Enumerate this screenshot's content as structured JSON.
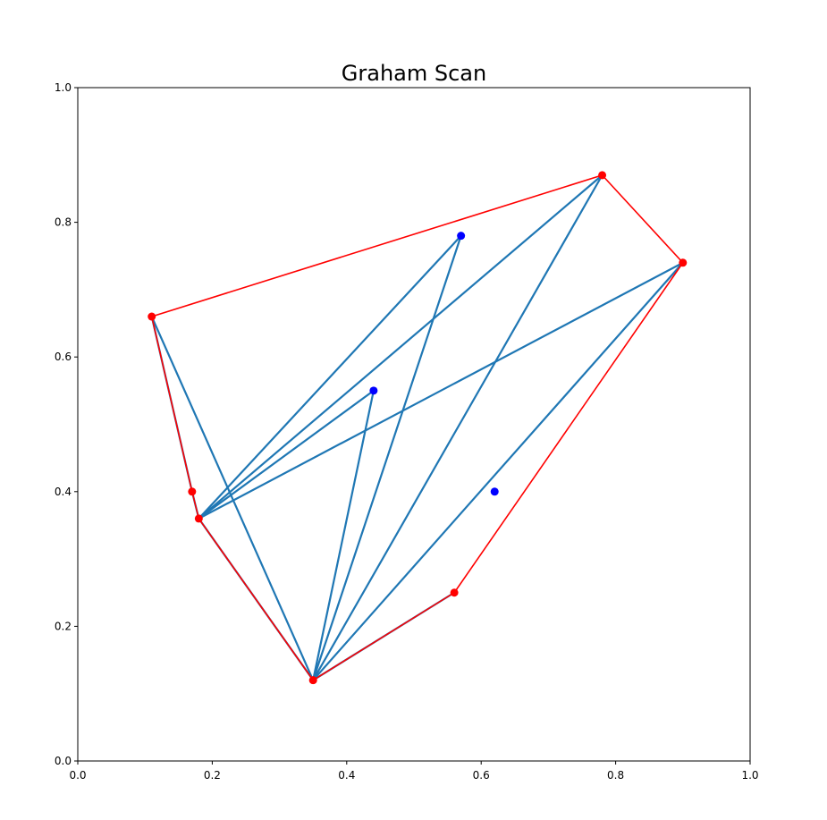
{
  "chart_data": {
    "type": "scatter",
    "title": "Graham Scan",
    "xlabel": "",
    "ylabel": "",
    "xlim": [
      0,
      1
    ],
    "ylim": [
      0,
      1
    ],
    "xticks": [
      "0.0",
      "0.2",
      "0.4",
      "0.6",
      "0.8",
      "1.0"
    ],
    "yticks": [
      "0.0",
      "0.2",
      "0.4",
      "0.6",
      "0.8",
      "1.0"
    ],
    "grid": false,
    "colors": {
      "hull": "#ff0000",
      "interior": "#0000ff",
      "scan": "#1f77b4"
    },
    "hull_points": [
      {
        "x": 0.35,
        "y": 0.12
      },
      {
        "x": 0.56,
        "y": 0.25
      },
      {
        "x": 0.9,
        "y": 0.74
      },
      {
        "x": 0.78,
        "y": 0.87
      },
      {
        "x": 0.11,
        "y": 0.66
      },
      {
        "x": 0.17,
        "y": 0.4
      },
      {
        "x": 0.18,
        "y": 0.36
      }
    ],
    "interior_points": [
      {
        "x": 0.57,
        "y": 0.78
      },
      {
        "x": 0.44,
        "y": 0.55
      },
      {
        "x": 0.62,
        "y": 0.4
      }
    ],
    "scan_segments": [
      [
        [
          0.35,
          0.12
        ],
        [
          0.56,
          0.25
        ]
      ],
      [
        [
          0.35,
          0.12
        ],
        [
          0.9,
          0.74
        ]
      ],
      [
        [
          0.35,
          0.12
        ],
        [
          0.78,
          0.87
        ]
      ],
      [
        [
          0.35,
          0.12
        ],
        [
          0.57,
          0.78
        ]
      ],
      [
        [
          0.35,
          0.12
        ],
        [
          0.44,
          0.55
        ]
      ],
      [
        [
          0.35,
          0.12
        ],
        [
          0.11,
          0.66
        ]
      ],
      [
        [
          0.35,
          0.12
        ],
        [
          0.18,
          0.36
        ]
      ],
      [
        [
          0.18,
          0.36
        ],
        [
          0.9,
          0.74
        ]
      ],
      [
        [
          0.18,
          0.36
        ],
        [
          0.78,
          0.87
        ]
      ],
      [
        [
          0.18,
          0.36
        ],
        [
          0.57,
          0.78
        ]
      ],
      [
        [
          0.18,
          0.36
        ],
        [
          0.44,
          0.55
        ]
      ],
      [
        [
          0.17,
          0.4
        ],
        [
          0.18,
          0.36
        ]
      ],
      [
        [
          0.11,
          0.66
        ],
        [
          0.17,
          0.4
        ]
      ]
    ]
  }
}
